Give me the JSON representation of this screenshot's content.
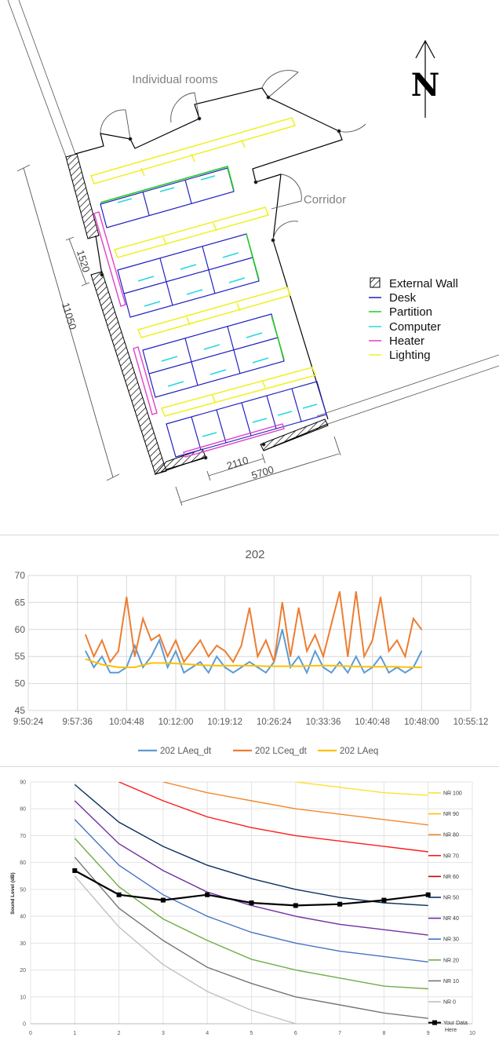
{
  "floorplan": {
    "north_label": "N",
    "labels": {
      "rooms": "Individual rooms",
      "corridor": "Corridor"
    },
    "dimensions": {
      "total_length": "11050",
      "heater_offset": "1520",
      "spacing": "2110",
      "width": "5700"
    },
    "legend": [
      {
        "name": "External Wall",
        "color": "#000000",
        "kind": "hatch"
      },
      {
        "name": "Desk",
        "color": "#2020c0",
        "kind": "line"
      },
      {
        "name": "Partition",
        "color": "#22cc22",
        "kind": "line"
      },
      {
        "name": "Computer",
        "color": "#22d8e0",
        "kind": "line"
      },
      {
        "name": "Heater",
        "color": "#e040c8",
        "kind": "line"
      },
      {
        "name": "Lighting",
        "color": "#f0f020",
        "kind": "line"
      }
    ]
  },
  "chart_data": [
    {
      "type": "line",
      "title": "202",
      "xlabel": "",
      "ylabel": "",
      "ylim": [
        45,
        70
      ],
      "yticks": [
        "45",
        "50",
        "55",
        "60",
        "65",
        "70"
      ],
      "xticks": [
        "9:50:24",
        "9:57:36",
        "10:04:48",
        "10:12:00",
        "10:19:12",
        "10:26:24",
        "10:33:36",
        "10:40:48",
        "10:48:00",
        "10:55:12"
      ],
      "x_range": [
        "9:50:24",
        "10:55:12"
      ],
      "grid": true,
      "legend_position": "bottom",
      "series": [
        {
          "name": "202 LAeq_dt",
          "color": "#5b9bd5",
          "x": [
            "9:58:48",
            "10:00:00",
            "10:01:12",
            "10:02:24",
            "10:03:36",
            "10:04:48",
            "10:06:00",
            "10:07:12",
            "10:08:24",
            "10:09:36",
            "10:10:48",
            "10:12:00",
            "10:13:12",
            "10:14:24",
            "10:15:36",
            "10:16:48",
            "10:18:00",
            "10:19:12",
            "10:20:24",
            "10:21:36",
            "10:22:48",
            "10:24:00",
            "10:25:12",
            "10:26:24",
            "10:27:36",
            "10:28:48",
            "10:30:00",
            "10:31:12",
            "10:32:24",
            "10:33:36",
            "10:34:48",
            "10:36:00",
            "10:37:12",
            "10:38:24",
            "10:39:36",
            "10:40:48",
            "10:42:00",
            "10:43:12",
            "10:44:24",
            "10:45:36",
            "10:46:48",
            "10:48:00"
          ],
          "values": [
            56,
            53,
            55,
            52,
            52,
            53,
            57,
            53,
            55,
            58,
            53,
            56,
            52,
            53,
            54,
            52,
            55,
            53,
            52,
            53,
            54,
            53,
            52,
            54,
            60,
            53,
            55,
            52,
            56,
            53,
            52,
            54,
            52,
            55,
            52,
            53,
            55,
            52,
            53,
            52,
            53,
            56
          ]
        },
        {
          "name": "202 LCeq_dt",
          "color": "#ed7d31",
          "x": [
            "9:58:48",
            "10:00:00",
            "10:01:12",
            "10:02:24",
            "10:03:36",
            "10:04:48",
            "10:06:00",
            "10:07:12",
            "10:08:24",
            "10:09:36",
            "10:10:48",
            "10:12:00",
            "10:13:12",
            "10:14:24",
            "10:15:36",
            "10:16:48",
            "10:18:00",
            "10:19:12",
            "10:20:24",
            "10:21:36",
            "10:22:48",
            "10:24:00",
            "10:25:12",
            "10:26:24",
            "10:27:36",
            "10:28:48",
            "10:30:00",
            "10:31:12",
            "10:32:24",
            "10:33:36",
            "10:34:48",
            "10:36:00",
            "10:37:12",
            "10:38:24",
            "10:39:36",
            "10:40:48",
            "10:42:00",
            "10:43:12",
            "10:44:24",
            "10:45:36",
            "10:46:48",
            "10:48:00"
          ],
          "values": [
            59,
            55,
            58,
            54,
            56,
            66,
            55,
            62,
            58,
            59,
            55,
            58,
            54,
            56,
            58,
            55,
            57,
            56,
            54,
            57,
            64,
            55,
            58,
            54,
            65,
            55,
            64,
            56,
            59,
            55,
            61,
            67,
            55,
            67,
            55,
            58,
            66,
            56,
            58,
            55,
            62,
            60
          ]
        },
        {
          "name": "202 LAeq",
          "color": "#ffc000",
          "x": [
            "9:58:48",
            "10:01:12",
            "10:03:36",
            "10:06:00",
            "10:08:24",
            "10:10:48",
            "10:13:12",
            "10:15:36",
            "10:18:00",
            "10:20:24",
            "10:22:48",
            "10:25:12",
            "10:27:36",
            "10:30:00",
            "10:32:24",
            "10:34:48",
            "10:37:12",
            "10:39:36",
            "10:42:00",
            "10:44:24",
            "10:46:48",
            "10:48:00"
          ],
          "values": [
            54.5,
            53.5,
            53,
            53,
            53.8,
            53.8,
            53.6,
            53.4,
            53.3,
            53.3,
            53.3,
            53.2,
            53.2,
            53.2,
            53.3,
            53.3,
            53.2,
            53.1,
            53.1,
            53.1,
            53,
            53
          ]
        }
      ]
    },
    {
      "type": "line",
      "title": "",
      "xlabel": "",
      "ylabel": "Sound Level (dB)",
      "ylim": [
        0,
        90
      ],
      "xlim": [
        0,
        10
      ],
      "yticks": [
        "0",
        "10",
        "20",
        "30",
        "40",
        "50",
        "60",
        "70",
        "80",
        "90"
      ],
      "xticks": [
        "0",
        "1",
        "2",
        "3",
        "4",
        "5",
        "6",
        "7",
        "8",
        "9",
        "10"
      ],
      "grid": true,
      "legend_position": "right",
      "x": [
        1,
        2,
        3,
        4,
        5,
        6,
        7,
        8,
        9
      ],
      "series": [
        {
          "name": "NR 100",
          "color": "#ffe033",
          "values": [
            null,
            null,
            null,
            null,
            null,
            90,
            88,
            86,
            85
          ]
        },
        {
          "name": "NR 90",
          "color": "#ffc000",
          "values": [
            null,
            null,
            null,
            null,
            null,
            null,
            null,
            null,
            null
          ]
        },
        {
          "name": "NR 80",
          "color": "#f4872a",
          "values": [
            null,
            null,
            90,
            86,
            83,
            80,
            78,
            76,
            74
          ]
        },
        {
          "name": "NR 70",
          "color": "#ff1a1a",
          "values": [
            null,
            90,
            83,
            77,
            73,
            70,
            68,
            66,
            64
          ]
        },
        {
          "name": "NR 60",
          "color": "#cc0000",
          "values": [
            null,
            null,
            null,
            null,
            null,
            null,
            null,
            null,
            null
          ]
        },
        {
          "name": "NR 50",
          "color": "#0b2f5e",
          "values": [
            89,
            75,
            66,
            59,
            54,
            50,
            47,
            45,
            44
          ]
        },
        {
          "name": "NR 40",
          "color": "#7030a0",
          "values": [
            83,
            67,
            57,
            49,
            44,
            40,
            37,
            35,
            33
          ]
        },
        {
          "name": "NR 30",
          "color": "#4472c4",
          "values": [
            76,
            59,
            48,
            40,
            34,
            30,
            27,
            25,
            23
          ]
        },
        {
          "name": "NR 20",
          "color": "#70ad47",
          "values": [
            69,
            51,
            39,
            31,
            24,
            20,
            17,
            14,
            13
          ]
        },
        {
          "name": "NR 10",
          "color": "#767676",
          "values": [
            62,
            43,
            31,
            21,
            15,
            10,
            7,
            4,
            2
          ]
        },
        {
          "name": "NR 0",
          "color": "#c0c0c0",
          "values": [
            55,
            36,
            22,
            12,
            5,
            0,
            null,
            null,
            null
          ]
        },
        {
          "name": "Your Data Here",
          "color": "#000000",
          "marker": "square",
          "values": [
            57,
            48,
            46,
            48,
            45,
            44,
            44.5,
            46,
            48
          ]
        }
      ],
      "legend_label_extra": {
        "Your Data Here": [
          "Your Data",
          "Here"
        ]
      }
    }
  ]
}
